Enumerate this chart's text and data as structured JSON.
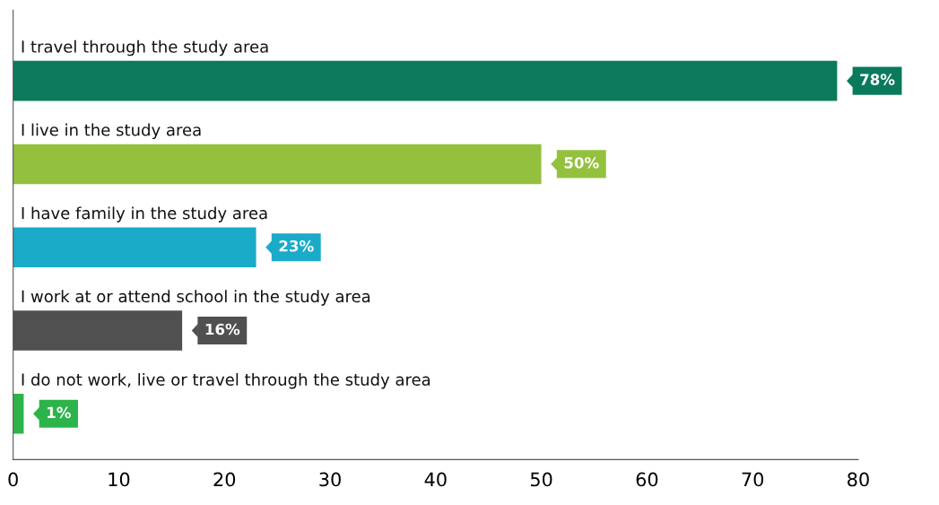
{
  "chart_data": {
    "type": "bar",
    "orientation": "horizontal",
    "categories": [
      "I travel through the study area",
      "I live in the study area",
      "I have family in the study area",
      "I work at or attend school in the study area",
      "I do not work, live or travel through the study area"
    ],
    "values": [
      78,
      50,
      23,
      16,
      1
    ],
    "colors": [
      "#0b7a5c",
      "#93c13e",
      "#1aabc9",
      "#505050",
      "#2cb34a"
    ],
    "value_labels": [
      "78%",
      "50%",
      "23%",
      "16%",
      "1%"
    ],
    "xlim": [
      0,
      80
    ],
    "xticks": [
      0,
      10,
      20,
      30,
      40,
      50,
      60,
      70,
      80
    ],
    "grid": false,
    "legend": false
  }
}
